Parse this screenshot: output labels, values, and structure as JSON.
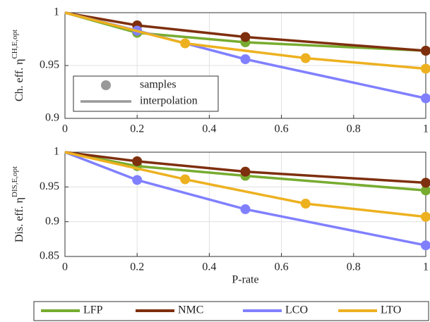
{
  "chart_data": [
    {
      "type": "line",
      "ylabel": "Ch. eff. η",
      "ylabel_superscript": "CH,E,opt",
      "xlim": [
        0,
        1
      ],
      "xticks": [
        0,
        0.2,
        0.4,
        0.6,
        0.8,
        1
      ],
      "ylim": [
        0.9,
        1
      ],
      "yticks": [
        0.9,
        0.95,
        1
      ],
      "grid": true,
      "legend": "lower left",
      "marker_legend": [
        "samples",
        "interpolation"
      ],
      "marker_legend_color": "#999999",
      "series": [
        {
          "name": "LFP",
          "color": "#77ac30",
          "x": [
            0,
            0.2,
            0.5,
            1
          ],
          "values": [
            1,
            0.981,
            0.972,
            0.964
          ]
        },
        {
          "name": "NMC",
          "color": "#7e2f0e",
          "x": [
            0,
            0.2,
            0.5,
            1
          ],
          "values": [
            1,
            0.988,
            0.977,
            0.964
          ]
        },
        {
          "name": "LCO",
          "color": "#8080ff",
          "x": [
            0,
            0.2,
            0.5,
            1
          ],
          "values": [
            1,
            0.983,
            0.956,
            0.919
          ]
        },
        {
          "name": "LTO",
          "color": "#edb120",
          "x": [
            0,
            0.333,
            0.667,
            1
          ],
          "values": [
            1,
            0.971,
            0.957,
            0.947
          ]
        }
      ]
    },
    {
      "type": "line",
      "ylabel": "Dis. eff. η",
      "ylabel_superscript": "DIS,E,opt",
      "xlabel": "P-rate",
      "xlim": [
        0,
        1
      ],
      "xticks": [
        0,
        0.2,
        0.4,
        0.6,
        0.8,
        1
      ],
      "ylim": [
        0.85,
        1
      ],
      "yticks": [
        0.85,
        0.9,
        0.95,
        1
      ],
      "grid": true,
      "legend": "below",
      "series": [
        {
          "name": "LFP",
          "color": "#77ac30",
          "x": [
            0,
            0.2,
            0.5,
            1
          ],
          "values": [
            1,
            0.98,
            0.966,
            0.945
          ]
        },
        {
          "name": "NMC",
          "color": "#7e2f0e",
          "x": [
            0,
            0.2,
            0.5,
            1
          ],
          "values": [
            1,
            0.987,
            0.972,
            0.956
          ]
        },
        {
          "name": "LCO",
          "color": "#8080ff",
          "x": [
            0,
            0.2,
            0.5,
            1
          ],
          "values": [
            1,
            0.96,
            0.918,
            0.866
          ]
        },
        {
          "name": "LTO",
          "color": "#edb120",
          "x": [
            0,
            0.333,
            0.667,
            1
          ],
          "values": [
            1,
            0.961,
            0.926,
            0.907
          ]
        }
      ]
    }
  ]
}
